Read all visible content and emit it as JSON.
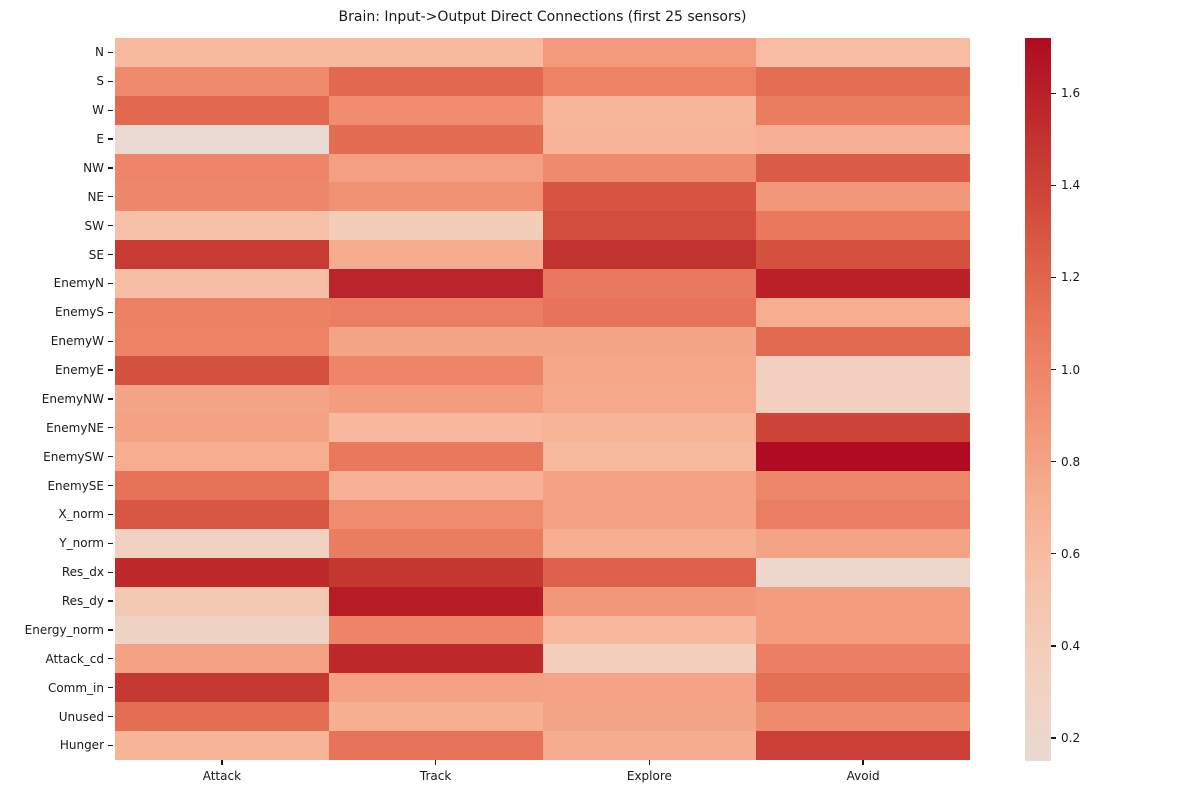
{
  "title": "Brain: Input->Output Direct Connections (first 25 sensors)",
  "chart_data": {
    "type": "heatmap",
    "title": "Brain: Input->Output Direct Connections (first 25 sensors)",
    "xlabel": "",
    "ylabel": "",
    "grid": false,
    "legend_position": "right-colorbar",
    "rows": [
      "N",
      "S",
      "W",
      "E",
      "NW",
      "NE",
      "SW",
      "SE",
      "EnemyN",
      "EnemyS",
      "EnemyW",
      "EnemyE",
      "EnemyNW",
      "EnemyNE",
      "EnemySW",
      "EnemySE",
      "X_norm",
      "Y_norm",
      "Res_dx",
      "Res_dy",
      "Energy_norm",
      "Attack_cd",
      "Comm_in",
      "Unused",
      "Hunger"
    ],
    "columns": [
      "Attack",
      "Track",
      "Explore",
      "Avoid"
    ],
    "values": [
      [
        0.62,
        0.62,
        0.86,
        0.6
      ],
      [
        0.97,
        1.18,
        1.02,
        1.15
      ],
      [
        1.18,
        0.95,
        0.66,
        1.06
      ],
      [
        0.15,
        1.16,
        0.67,
        0.7
      ],
      [
        1.0,
        0.82,
        0.97,
        1.26
      ],
      [
        0.98,
        0.92,
        1.3,
        0.88
      ],
      [
        0.55,
        0.4,
        1.34,
        1.09
      ],
      [
        1.45,
        0.73,
        1.5,
        1.32
      ],
      [
        0.57,
        1.58,
        1.08,
        1.6
      ],
      [
        1.03,
        1.05,
        1.11,
        0.72
      ],
      [
        1.02,
        0.78,
        0.78,
        1.17
      ],
      [
        1.32,
        1.0,
        0.77,
        0.36
      ],
      [
        0.78,
        0.84,
        0.76,
        0.36
      ],
      [
        0.8,
        0.63,
        0.67,
        1.39
      ],
      [
        0.72,
        1.09,
        0.62,
        1.72
      ],
      [
        1.12,
        0.68,
        0.8,
        0.99
      ],
      [
        1.28,
        0.96,
        0.81,
        1.05
      ],
      [
        0.31,
        1.06,
        0.71,
        0.79
      ],
      [
        1.55,
        1.47,
        1.22,
        0.22
      ],
      [
        0.45,
        1.62,
        0.88,
        0.84
      ],
      [
        0.27,
        1.01,
        0.63,
        0.84
      ],
      [
        0.8,
        1.55,
        0.37,
        1.04
      ],
      [
        1.46,
        0.81,
        0.79,
        1.14
      ],
      [
        1.15,
        0.71,
        0.78,
        0.97
      ],
      [
        0.67,
        1.11,
        0.73,
        1.42
      ]
    ],
    "vmin": 0.15,
    "vmax": 1.72,
    "colorbar_ticks": [
      0.2,
      0.4,
      0.6,
      0.8,
      1.0,
      1.2,
      1.4,
      1.6
    ],
    "colorbar_tick_labels": [
      "0.2",
      "0.4",
      "0.6",
      "0.8",
      "1.0",
      "1.2",
      "1.4",
      "1.6"
    ],
    "colormap_stops": [
      {
        "v": 0.15,
        "color": "#e9d9d2"
      },
      {
        "v": 0.3,
        "color": "#f1d3c3"
      },
      {
        "v": 0.4,
        "color": "#f3cdba"
      },
      {
        "v": 0.5,
        "color": "#f5c5ae"
      },
      {
        "v": 0.6,
        "color": "#f7bca1"
      },
      {
        "v": 0.7,
        "color": "#f7b093"
      },
      {
        "v": 0.8,
        "color": "#f5a284"
      },
      {
        "v": 0.9,
        "color": "#f19476"
      },
      {
        "v": 1.0,
        "color": "#ee8568"
      },
      {
        "v": 1.1,
        "color": "#e8765b"
      },
      {
        "v": 1.2,
        "color": "#e0654d"
      },
      {
        "v": 1.3,
        "color": "#d65441"
      },
      {
        "v": 1.4,
        "color": "#cc4237"
      },
      {
        "v": 1.5,
        "color": "#c23330"
      },
      {
        "v": 1.6,
        "color": "#b92028"
      },
      {
        "v": 1.72,
        "color": "#b00b20"
      }
    ],
    "text_color": "#1a1a1a",
    "background_color": "#ffffff"
  }
}
